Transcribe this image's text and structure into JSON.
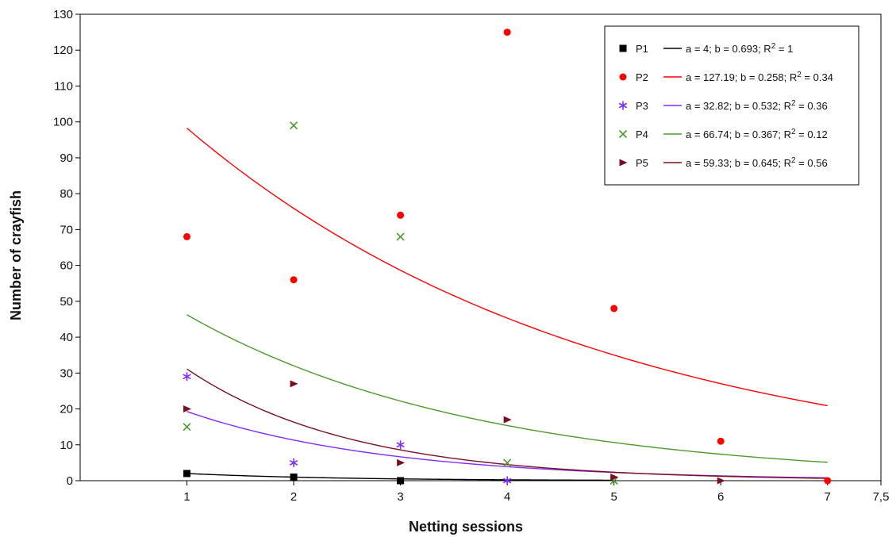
{
  "chart_data": {
    "type": "scatter",
    "xlabel": "Netting sessions",
    "ylabel": "Number of crayfish",
    "xlim": [
      0,
      7.5
    ],
    "ylim": [
      0,
      130
    ],
    "x_ticks": [
      {
        "value": 1,
        "label": "1"
      },
      {
        "value": 2,
        "label": "2"
      },
      {
        "value": 3,
        "label": "3"
      },
      {
        "value": 4,
        "label": "4"
      },
      {
        "value": 5,
        "label": "5"
      },
      {
        "value": 6,
        "label": "6"
      },
      {
        "value": 7,
        "label": "7"
      },
      {
        "value": 7.5,
        "label": "7,5"
      }
    ],
    "y_ticks": [
      0,
      10,
      20,
      30,
      40,
      50,
      60,
      70,
      80,
      90,
      100,
      110,
      120,
      130
    ],
    "grid": false,
    "legend_position": "top-right",
    "series": [
      {
        "name": "P1",
        "marker": "square",
        "color": "#000000",
        "points": [
          [
            1,
            2
          ],
          [
            2,
            1
          ],
          [
            3,
            0
          ]
        ],
        "fit_label": "a = 4; b = 0.693; R",
        "fit_r2": " = 1",
        "fit": {
          "a": 4,
          "b": 0.693,
          "x_range": [
            1,
            5
          ]
        }
      },
      {
        "name": "P2",
        "marker": "circle",
        "color": "#ff0000",
        "points": [
          [
            1,
            68
          ],
          [
            2,
            56
          ],
          [
            3,
            74
          ],
          [
            4,
            125
          ],
          [
            5,
            48
          ],
          [
            6,
            11
          ],
          [
            7,
            0
          ]
        ],
        "fit_label": "a = 127.19; b = 0.258; R",
        "fit_r2": " = 0.34",
        "fit": {
          "a": 127.19,
          "b": 0.258,
          "x_range": [
            1,
            7
          ]
        }
      },
      {
        "name": "P3",
        "marker": "star",
        "color": "#7f2bff",
        "points": [
          [
            1,
            29
          ],
          [
            2,
            5
          ],
          [
            3,
            10
          ],
          [
            4,
            0
          ]
        ],
        "fit_label": "a = 32.82; b = 0.532; R",
        "fit_r2": " = 0.36",
        "fit": {
          "a": 32.82,
          "b": 0.532,
          "x_range": [
            1,
            7
          ]
        }
      },
      {
        "name": "P4",
        "marker": "x",
        "color": "#4c9a2a",
        "points": [
          [
            1,
            15
          ],
          [
            2,
            99
          ],
          [
            3,
            68
          ],
          [
            4,
            5
          ],
          [
            5,
            0
          ]
        ],
        "fit_label": "a = 66.74; b = 0.367; R",
        "fit_r2": " = 0.12",
        "fit": {
          "a": 66.74,
          "b": 0.367,
          "x_range": [
            1,
            7
          ]
        }
      },
      {
        "name": "P5",
        "marker": "triangle-right",
        "color": "#7a0f22",
        "points": [
          [
            1,
            20
          ],
          [
            2,
            27
          ],
          [
            3,
            5
          ],
          [
            4,
            17
          ],
          [
            5,
            1
          ],
          [
            6,
            0
          ]
        ],
        "fit_label": "a = 59.33; b = 0.645; R",
        "fit_r2": " = 0.56",
        "fit": {
          "a": 59.33,
          "b": 0.645,
          "x_range": [
            1,
            7
          ]
        }
      }
    ]
  }
}
